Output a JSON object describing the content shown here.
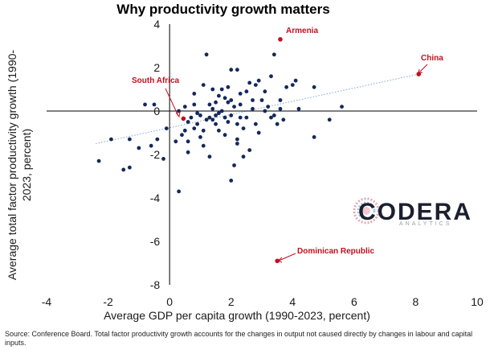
{
  "chart_data": {
    "type": "scatter",
    "title": "Why productivity growth matters",
    "xlabel": "Average GDP per capita growth  (1990-2023, percent)",
    "ylabel_lines": [
      "Average total factor productivity growth (1990-",
      "2023, percent)"
    ],
    "xlim": [
      -4,
      10
    ],
    "ylim": [
      -8,
      4
    ],
    "xticks": [
      "-4",
      "-2",
      "0",
      "2",
      "4",
      "6",
      "8",
      "10"
    ],
    "yticks": [
      "4",
      "2",
      "0",
      "-2",
      "-4",
      "-6",
      "-8"
    ],
    "trendline": {
      "x": [
        -2.4,
        8.1
      ],
      "y": [
        -1.5,
        1.7
      ],
      "style": "dotted",
      "color": "#7fa6cc"
    },
    "point_color": "#14285a",
    "highlight_color": "#c0101f",
    "highlighted": [
      {
        "label": "Armenia",
        "x": 3.6,
        "y": 3.3
      },
      {
        "label": "China",
        "x": 8.1,
        "y": 1.7
      },
      {
        "label": "South Africa",
        "x": 0.45,
        "y": -0.35
      },
      {
        "label": "Dominican Republic",
        "x": 3.5,
        "y": -6.9
      }
    ],
    "points": [
      [
        -2.3,
        -2.3
      ],
      [
        -1.5,
        -2.7
      ],
      [
        -1.3,
        -2.6
      ],
      [
        -1.3,
        -1.3
      ],
      [
        -1.0,
        -1.7
      ],
      [
        -0.8,
        0.3
      ],
      [
        -0.6,
        -1.6
      ],
      [
        -0.5,
        0.3
      ],
      [
        -0.4,
        -1.3
      ],
      [
        -0.2,
        -2.2
      ],
      [
        -0.1,
        -0.8
      ],
      [
        0.2,
        -1.4
      ],
      [
        0.3,
        0.0
      ],
      [
        0.3,
        -3.7
      ],
      [
        0.4,
        -1.1
      ],
      [
        0.5,
        -0.9
      ],
      [
        0.5,
        0.2
      ],
      [
        0.6,
        -0.5
      ],
      [
        0.6,
        -1.4
      ],
      [
        0.7,
        -0.3
      ],
      [
        0.8,
        -0.8
      ],
      [
        0.8,
        0.8
      ],
      [
        0.8,
        0.3
      ],
      [
        0.9,
        -0.1
      ],
      [
        0.9,
        -0.6
      ],
      [
        1.0,
        -1.2
      ],
      [
        1.0,
        -0.2
      ],
      [
        1.1,
        1.2
      ],
      [
        1.1,
        -1.6
      ],
      [
        1.2,
        2.6
      ],
      [
        1.2,
        -0.4
      ],
      [
        1.3,
        0.3
      ],
      [
        1.3,
        -0.3
      ],
      [
        1.3,
        -2.1
      ],
      [
        1.4,
        1.0
      ],
      [
        1.4,
        0.1
      ],
      [
        1.4,
        -0.4
      ],
      [
        1.5,
        0.4
      ],
      [
        1.5,
        -0.6
      ],
      [
        1.6,
        0.7
      ],
      [
        1.6,
        -0.1
      ],
      [
        1.6,
        -0.9
      ],
      [
        1.7,
        1.0
      ],
      [
        1.7,
        0.0
      ],
      [
        1.8,
        -0.3
      ],
      [
        1.8,
        0.6
      ],
      [
        1.8,
        -1.1
      ],
      [
        1.9,
        1.1
      ],
      [
        1.9,
        -0.5
      ],
      [
        2.0,
        0.5
      ],
      [
        2.0,
        -0.2
      ],
      [
        2.0,
        1.9
      ],
      [
        2.1,
        -2.5
      ],
      [
        2.1,
        0.2
      ],
      [
        2.2,
        -0.6
      ],
      [
        2.2,
        -1.5
      ],
      [
        2.2,
        1.9
      ],
      [
        2.3,
        0.8
      ],
      [
        2.3,
        0.3
      ],
      [
        2.4,
        -0.8
      ],
      [
        2.4,
        -2.1
      ],
      [
        2.5,
        0.9
      ],
      [
        2.5,
        -0.3
      ],
      [
        2.6,
        1.3
      ],
      [
        2.7,
        0.1
      ],
      [
        2.8,
        1.2
      ],
      [
        2.8,
        -0.6
      ],
      [
        2.9,
        -1.0
      ],
      [
        2.9,
        1.4
      ],
      [
        3.0,
        0.5
      ],
      [
        3.1,
        0.0
      ],
      [
        3.1,
        0.9
      ],
      [
        3.2,
        0.2
      ],
      [
        3.3,
        1.6
      ],
      [
        3.3,
        -0.3
      ],
      [
        3.4,
        -0.2
      ],
      [
        3.4,
        2.6
      ],
      [
        3.5,
        -0.6
      ],
      [
        3.6,
        0.1
      ],
      [
        3.7,
        -0.4
      ],
      [
        3.8,
        1.1
      ],
      [
        4.0,
        1.2
      ],
      [
        4.1,
        1.4
      ],
      [
        4.2,
        0.1
      ],
      [
        4.7,
        1.1
      ],
      [
        4.7,
        -1.2
      ],
      [
        5.2,
        -0.4
      ],
      [
        5.6,
        0.2
      ],
      [
        3.6,
        0.5
      ],
      [
        2.6,
        -1.8
      ],
      [
        2.3,
        -0.3
      ],
      [
        1.1,
        -0.9
      ],
      [
        0.6,
        -1.9
      ],
      [
        -1.9,
        -1.3
      ],
      [
        1.5,
        -0.2
      ],
      [
        2.7,
        0.5
      ],
      [
        2.2,
        -1.3
      ],
      [
        2.0,
        -3.2
      ],
      [
        1.9,
        0.4
      ]
    ]
  },
  "annotations": {
    "armenia": "Armenia",
    "china": "China",
    "south_africa": "South Africa",
    "dominican": "Dominican Republic"
  },
  "logo": {
    "name": "CODERA",
    "sub": "ANALYTICS"
  },
  "source": "Source: Conference Board. Total factor productivity growth accounts for the changes in output not caused directly by changes in labour and capital inputs."
}
